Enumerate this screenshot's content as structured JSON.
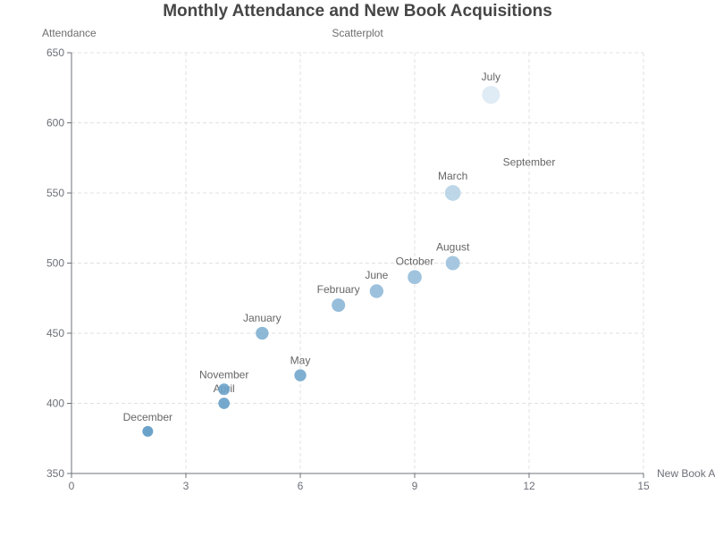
{
  "chart_data": {
    "type": "scatter",
    "title": "Monthly Attendance and New Book Acquisitions",
    "subtitle": "Scatterplot",
    "xlabel": "New Book Acquisitions",
    "ylabel": "Attendance",
    "xlim": [
      0,
      15
    ],
    "ylim": [
      350,
      650
    ],
    "xticks": [
      0,
      3,
      6,
      9,
      12,
      15
    ],
    "yticks": [
      350,
      400,
      450,
      500,
      550,
      600,
      650
    ],
    "grid": true,
    "points": [
      {
        "label": "January",
        "x": 5,
        "y": 450
      },
      {
        "label": "February",
        "x": 7,
        "y": 470
      },
      {
        "label": "March",
        "x": 10,
        "y": 550
      },
      {
        "label": "April",
        "x": 4,
        "y": 400
      },
      {
        "label": "May",
        "x": 6,
        "y": 420
      },
      {
        "label": "June",
        "x": 8,
        "y": 480
      },
      {
        "label": "July",
        "x": 11,
        "y": 620
      },
      {
        "label": "August",
        "x": 10,
        "y": 500
      },
      {
        "label": "September",
        "x": 12,
        "y": 560
      },
      {
        "label": "October",
        "x": 9,
        "y": 490
      },
      {
        "label": "November",
        "x": 4,
        "y": 410
      },
      {
        "label": "December",
        "x": 2,
        "y": 380
      }
    ]
  }
}
